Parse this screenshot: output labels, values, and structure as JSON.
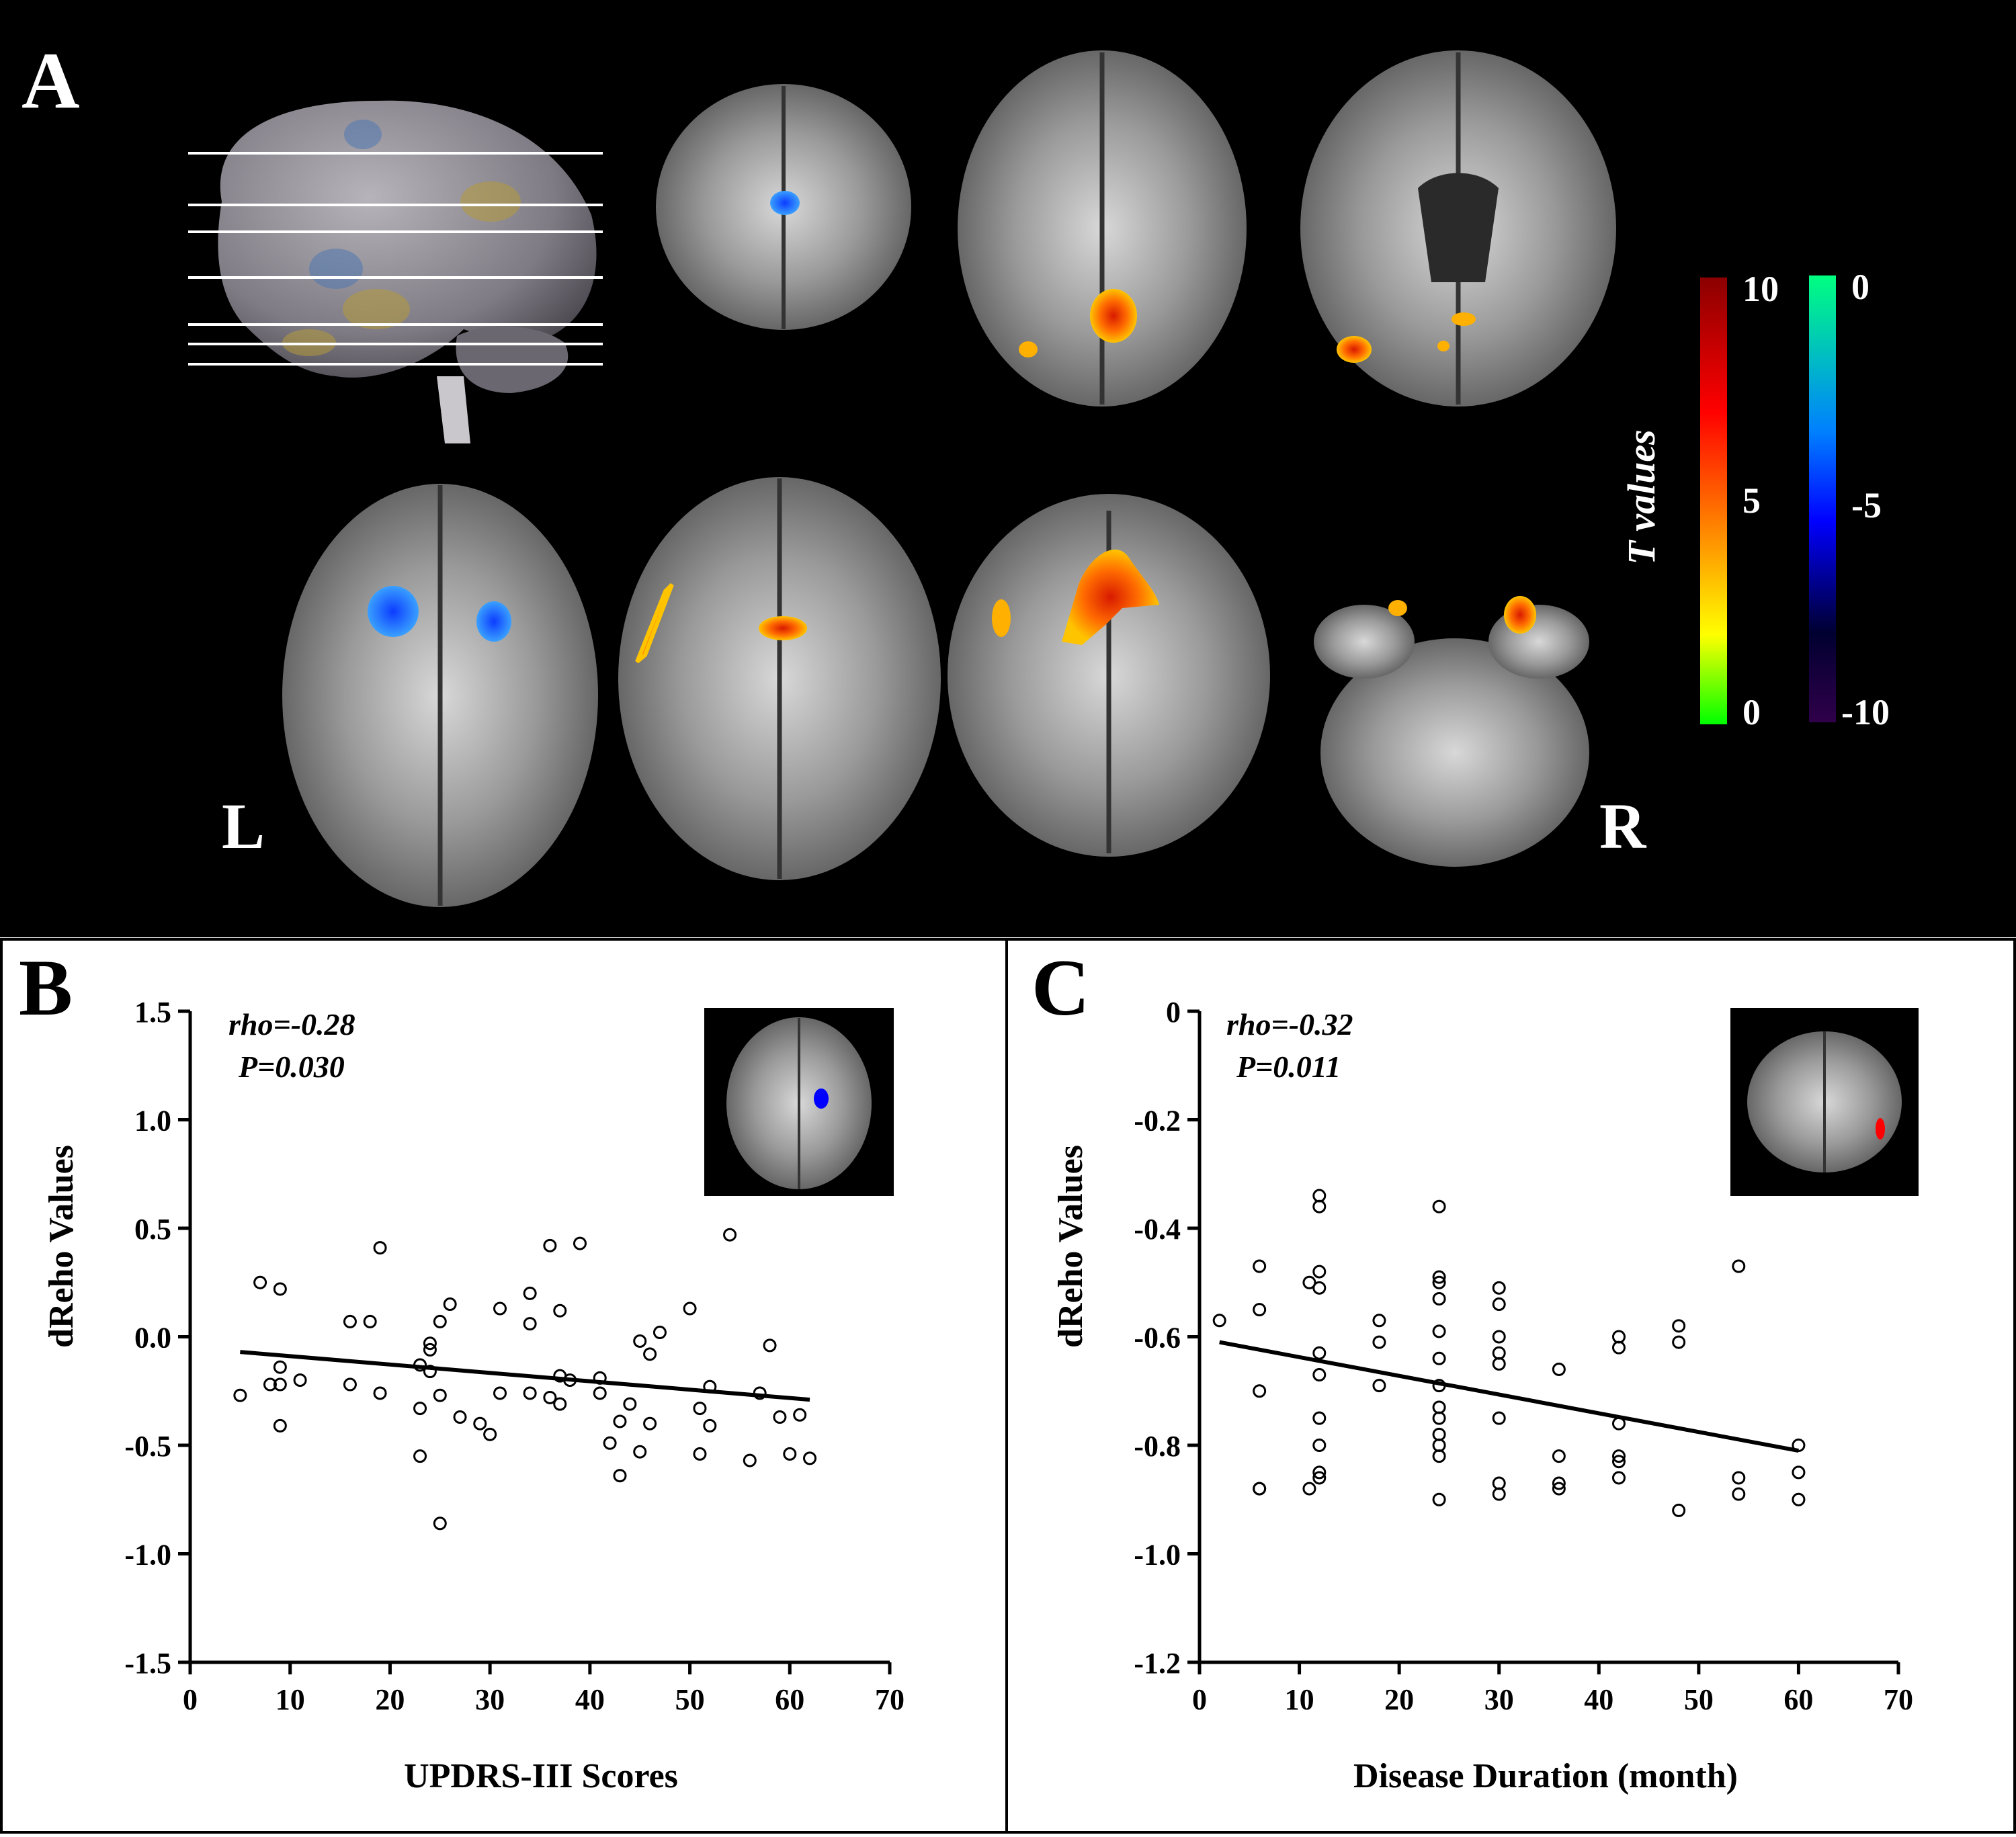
{
  "panel_a": {
    "label": "A",
    "left_marker": "L",
    "right_marker": "R",
    "colorbar_title": "T values",
    "colorbar_positive": {
      "ticks": [
        "10",
        "5",
        "0"
      ],
      "colors": [
        "#8b0000",
        "#ff0000",
        "#ff7f00",
        "#ffff00",
        "#00ff00"
      ]
    },
    "colorbar_negative": {
      "ticks": [
        "0",
        "-5",
        "-10"
      ],
      "colors": [
        "#00ff80",
        "#0080ff",
        "#0000ff",
        "#000030",
        "#30004a"
      ]
    },
    "colors": {
      "background": "#000000",
      "activation_positive": "#ff8c00",
      "activation_negative": "#1e6fff"
    }
  },
  "panel_b": {
    "label": "B",
    "stat_rho": "rho=-0.28",
    "stat_p": "P=0.030",
    "inset_highlight_color": "#0000ff"
  },
  "panel_c": {
    "label": "C",
    "stat_rho": "rho=-0.32",
    "stat_p": "P=0.011",
    "inset_highlight_color": "#ff0000"
  },
  "chart_data": [
    {
      "type": "scatter",
      "panel": "B",
      "xlabel": "UPDRS-III Scores",
      "ylabel": "dReho Values",
      "xlim": [
        0,
        70
      ],
      "ylim": [
        -1.5,
        1.5
      ],
      "xticks": [
        0,
        10,
        20,
        30,
        40,
        50,
        60,
        70
      ],
      "yticks": [
        1.5,
        1.0,
        0.5,
        0.0,
        -0.5,
        -1.0,
        -1.5
      ],
      "xtick_labels": [
        "0",
        "10",
        "20",
        "30",
        "40",
        "50",
        "60",
        "70"
      ],
      "ytick_labels": [
        "1.5",
        "1.0",
        "0.5",
        "0.0",
        "-0.5",
        "-1.0",
        "-1.5"
      ],
      "fit_line": {
        "x": [
          5,
          62
        ],
        "y": [
          -0.07,
          -0.29
        ]
      },
      "points": [
        [
          5,
          -0.27
        ],
        [
          7,
          0.25
        ],
        [
          8,
          -0.22
        ],
        [
          9,
          0.22
        ],
        [
          9,
          -0.22
        ],
        [
          9,
          -0.14
        ],
        [
          9,
          -0.41
        ],
        [
          11,
          -0.2
        ],
        [
          16,
          0.07
        ],
        [
          16,
          -0.22
        ],
        [
          18,
          0.07
        ],
        [
          19,
          0.41
        ],
        [
          19,
          -0.26
        ],
        [
          23,
          -0.55
        ],
        [
          23,
          -0.33
        ],
        [
          23,
          -0.13
        ],
        [
          24,
          -0.16
        ],
        [
          24,
          -0.03
        ],
        [
          24,
          -0.06
        ],
        [
          25,
          -0.27
        ],
        [
          25,
          0.07
        ],
        [
          25,
          -0.86
        ],
        [
          26,
          0.15
        ],
        [
          27,
          -0.37
        ],
        [
          29,
          -0.4
        ],
        [
          30,
          -0.45
        ],
        [
          31,
          0.13
        ],
        [
          31,
          -0.26
        ],
        [
          34,
          0.2
        ],
        [
          34,
          0.06
        ],
        [
          34,
          -0.26
        ],
        [
          36,
          0.42
        ],
        [
          36,
          -0.28
        ],
        [
          37,
          0.12
        ],
        [
          37,
          -0.18
        ],
        [
          37,
          -0.31
        ],
        [
          38,
          -0.2
        ],
        [
          39,
          0.43
        ],
        [
          41,
          -0.19
        ],
        [
          41,
          -0.26
        ],
        [
          42,
          -0.49
        ],
        [
          43,
          -0.39
        ],
        [
          43,
          -0.64
        ],
        [
          44,
          -0.31
        ],
        [
          45,
          -0.02
        ],
        [
          45,
          -0.53
        ],
        [
          46,
          -0.08
        ],
        [
          46,
          -0.4
        ],
        [
          47,
          0.02
        ],
        [
          50,
          0.13
        ],
        [
          51,
          -0.33
        ],
        [
          51,
          -0.54
        ],
        [
          52,
          -0.23
        ],
        [
          52,
          -0.41
        ],
        [
          54,
          0.47
        ],
        [
          56,
          -0.57
        ],
        [
          57,
          -0.26
        ],
        [
          58,
          -0.04
        ],
        [
          59,
          -0.37
        ],
        [
          60,
          -0.54
        ],
        [
          61,
          -0.36
        ],
        [
          62,
          -0.56
        ]
      ]
    },
    {
      "type": "scatter",
      "panel": "C",
      "xlabel": "Disease Duration (month)",
      "ylabel": "dReho Values",
      "xlim": [
        0,
        70
      ],
      "ylim": [
        -1.2,
        0
      ],
      "xticks": [
        0,
        10,
        20,
        30,
        40,
        50,
        60,
        70
      ],
      "yticks": [
        0,
        -0.2,
        -0.4,
        -0.6,
        -0.8,
        -1.0,
        -1.2
      ],
      "xtick_labels": [
        "0",
        "10",
        "20",
        "30",
        "40",
        "50",
        "60",
        "70"
      ],
      "ytick_labels": [
        "0",
        "-0.2",
        "-0.4",
        "-0.6",
        "-0.8",
        "-1.0",
        "-1.2"
      ],
      "fit_line": {
        "x": [
          2,
          60
        ],
        "y": [
          -0.61,
          -0.81
        ]
      },
      "points": [
        [
          2,
          -0.57
        ],
        [
          6,
          -0.47
        ],
        [
          6,
          -0.55
        ],
        [
          6,
          -0.7
        ],
        [
          6,
          -0.88
        ],
        [
          6,
          -0.88
        ],
        [
          11,
          -0.5
        ],
        [
          11,
          -0.88
        ],
        [
          12,
          -0.34
        ],
        [
          12,
          -0.36
        ],
        [
          12,
          -0.48
        ],
        [
          12,
          -0.51
        ],
        [
          12,
          -0.63
        ],
        [
          12,
          -0.67
        ],
        [
          12,
          -0.75
        ],
        [
          12,
          -0.8
        ],
        [
          12,
          -0.85
        ],
        [
          12,
          -0.86
        ],
        [
          18,
          -0.57
        ],
        [
          18,
          -0.61
        ],
        [
          18,
          -0.69
        ],
        [
          24,
          -0.36
        ],
        [
          24,
          -0.49
        ],
        [
          24,
          -0.5
        ],
        [
          24,
          -0.53
        ],
        [
          24,
          -0.59
        ],
        [
          24,
          -0.64
        ],
        [
          24,
          -0.69
        ],
        [
          24,
          -0.73
        ],
        [
          24,
          -0.75
        ],
        [
          24,
          -0.78
        ],
        [
          24,
          -0.8
        ],
        [
          24,
          -0.82
        ],
        [
          24,
          -0.9
        ],
        [
          30,
          -0.51
        ],
        [
          30,
          -0.54
        ],
        [
          30,
          -0.6
        ],
        [
          30,
          -0.63
        ],
        [
          30,
          -0.65
        ],
        [
          30,
          -0.75
        ],
        [
          30,
          -0.87
        ],
        [
          30,
          -0.89
        ],
        [
          36,
          -0.66
        ],
        [
          36,
          -0.82
        ],
        [
          36,
          -0.87
        ],
        [
          36,
          -0.88
        ],
        [
          42,
          -0.6
        ],
        [
          42,
          -0.62
        ],
        [
          42,
          -0.76
        ],
        [
          42,
          -0.82
        ],
        [
          42,
          -0.83
        ],
        [
          42,
          -0.86
        ],
        [
          48,
          -0.58
        ],
        [
          48,
          -0.61
        ],
        [
          48,
          -0.92
        ],
        [
          54,
          -0.47
        ],
        [
          54,
          -0.86
        ],
        [
          54,
          -0.89
        ],
        [
          60,
          -0.8
        ],
        [
          60,
          -0.85
        ],
        [
          60,
          -0.9
        ]
      ]
    }
  ]
}
